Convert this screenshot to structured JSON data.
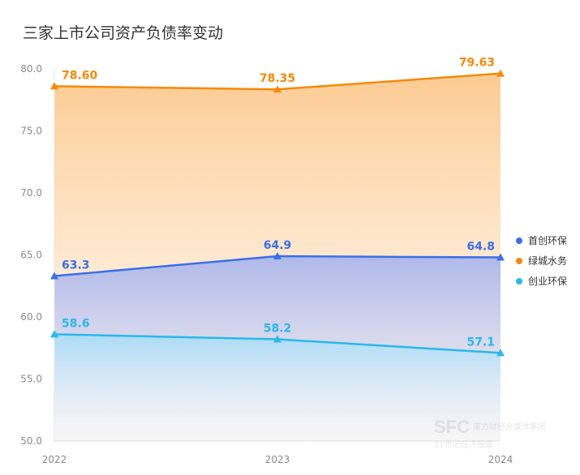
{
  "title": "三家上市公司资产负债率变动",
  "chart_data": {
    "type": "area",
    "categories": [
      "2022",
      "2023",
      "2024"
    ],
    "ylim": [
      50,
      80
    ],
    "yticks": [
      "50.0",
      "55.0",
      "60.0",
      "65.0",
      "70.0",
      "75.0",
      "80.0"
    ],
    "grid": false,
    "legend_position": "right",
    "series": [
      {
        "name": "首创环保",
        "color": "#3a6fe8",
        "values": [
          63.3,
          64.9,
          64.8
        ],
        "labels": [
          "63.3",
          "64.9",
          "64.8"
        ]
      },
      {
        "name": "绿城水务",
        "color": "#f5890a",
        "values": [
          78.6,
          78.35,
          79.63
        ],
        "labels": [
          "78.60",
          "78.35",
          "79.63"
        ]
      },
      {
        "name": "创业环保",
        "color": "#29b8ec",
        "values": [
          58.6,
          58.2,
          57.1
        ],
        "labels": [
          "58.6",
          "58.2",
          "57.1"
        ]
      }
    ]
  },
  "watermark": {
    "text": "SFC",
    "sub": "南方财经全媒体集团",
    "sub2": "21世纪经济报道"
  }
}
